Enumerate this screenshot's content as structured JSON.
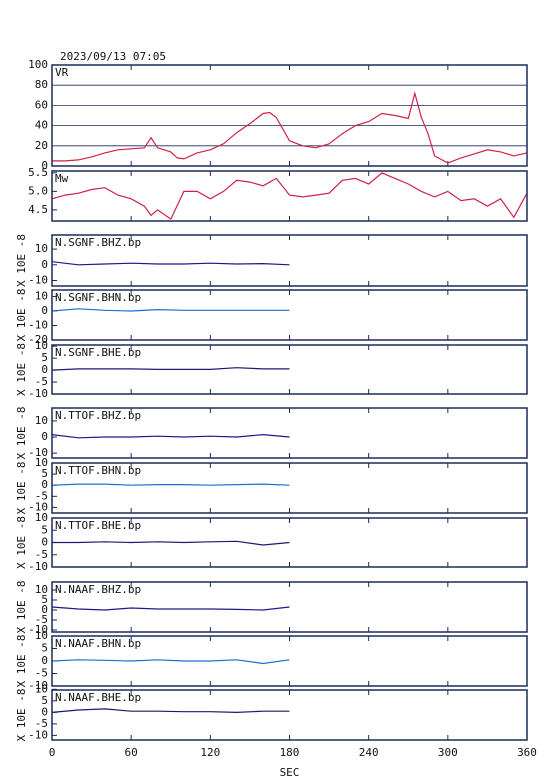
{
  "chart_data": [
    {
      "type": "line",
      "title": "2023/09/13 07:05",
      "label": "VR",
      "grid": true,
      "xlim": [
        0,
        360
      ],
      "xticks": [
        0,
        60,
        120,
        180,
        240,
        300,
        360
      ],
      "ylim": [
        0,
        100
      ],
      "yticks": [
        0,
        20,
        40,
        60,
        80,
        100
      ],
      "x": [
        0,
        10,
        20,
        30,
        40,
        50,
        60,
        70,
        75,
        80,
        90,
        95,
        100,
        110,
        120,
        130,
        140,
        150,
        160,
        165,
        170,
        180,
        190,
        200,
        210,
        220,
        230,
        240,
        250,
        260,
        270,
        275,
        280,
        285,
        290,
        300,
        310,
        320,
        330,
        340,
        350,
        360
      ],
      "series": [
        {
          "color": "#d0204a",
          "values": [
            5,
            5,
            6,
            9,
            13,
            16,
            17,
            18,
            28,
            18,
            14,
            8,
            7,
            13,
            16,
            22,
            33,
            42,
            52,
            53,
            48,
            25,
            20,
            18,
            22,
            32,
            40,
            44,
            52,
            50,
            47,
            72,
            48,
            32,
            10,
            3,
            8,
            12,
            16,
            14,
            10,
            13
          ]
        }
      ]
    },
    {
      "type": "line",
      "label": "Mw",
      "grid": false,
      "xlim": [
        0,
        360
      ],
      "xticks": [
        0,
        60,
        120,
        180,
        240,
        300,
        360
      ],
      "ylim": [
        4.2,
        5.55
      ],
      "yticks": [
        4.5,
        {
          "value": 5,
          "label": "5.0"
        },
        5.5
      ],
      "x": [
        0,
        10,
        20,
        30,
        40,
        50,
        60,
        70,
        75,
        80,
        90,
        100,
        110,
        120,
        130,
        140,
        150,
        160,
        170,
        180,
        190,
        200,
        210,
        220,
        230,
        240,
        250,
        260,
        270,
        280,
        290,
        300,
        310,
        320,
        330,
        340,
        350,
        360
      ],
      "series": [
        {
          "color": "#d0204a",
          "values": [
            4.8,
            4.9,
            4.95,
            5.05,
            5.1,
            4.9,
            4.8,
            4.6,
            4.35,
            4.5,
            4.25,
            5.0,
            5.0,
            4.8,
            5.0,
            5.3,
            5.25,
            5.15,
            5.35,
            4.9,
            4.85,
            4.9,
            4.95,
            5.3,
            5.35,
            5.2,
            5.5,
            5.35,
            5.2,
            5.0,
            4.85,
            5.0,
            4.75,
            4.8,
            4.6,
            4.8,
            4.3,
            4.95
          ]
        }
      ]
    },
    {
      "type": "line",
      "label": "N.SGNF.BHZ.bp",
      "y_label": "X 10E -8",
      "xlim": [
        0,
        360
      ],
      "xticks": [
        0,
        60,
        120,
        180,
        240,
        300,
        360
      ],
      "ylim": [
        -13.5,
        19
      ],
      "yticks": [
        10,
        0,
        -10
      ],
      "x": [
        0,
        20,
        40,
        60,
        80,
        100,
        120,
        140,
        160,
        180
      ],
      "series": [
        {
          "color": "#1a1a8c",
          "values": [
            2,
            0,
            0.5,
            1,
            0.5,
            0.5,
            1,
            0.5,
            0.8,
            0
          ]
        }
      ]
    },
    {
      "type": "line",
      "label": "N.SGNF.BHN.bp",
      "y_label": "X 10E -8",
      "xlim": [
        0,
        360
      ],
      "xticks": [
        0,
        60,
        120,
        180,
        240,
        300,
        360
      ],
      "ylim": [
        -20,
        14.5
      ],
      "yticks": [
        10,
        0,
        -10,
        -20
      ],
      "x": [
        0,
        20,
        40,
        60,
        80,
        100,
        120,
        140,
        160,
        180
      ],
      "series": [
        {
          "color": "#1a70d0",
          "values": [
            0,
            1.5,
            0.5,
            0,
            1,
            0.5,
            0.5,
            0.5,
            0.5,
            0.5
          ]
        }
      ]
    },
    {
      "type": "line",
      "label": "N.SGNF.BHE.bp",
      "y_label": "X 10E -8",
      "xlim": [
        0,
        360
      ],
      "xticks": [
        0,
        60,
        120,
        180,
        240,
        300,
        360
      ],
      "ylim": [
        -10,
        10.5
      ],
      "yticks": [
        10,
        5,
        0,
        -5,
        -10
      ],
      "x": [
        0,
        20,
        40,
        60,
        80,
        100,
        120,
        140,
        160,
        180
      ],
      "series": [
        {
          "color": "#1a1a6e",
          "values": [
            0,
            0.5,
            0.5,
            0.5,
            0.3,
            0.3,
            0.3,
            1,
            0.5,
            0.5
          ]
        }
      ]
    },
    {
      "type": "line",
      "label": "N.TTOF.BHZ.bp",
      "y_label": "X 10E -8",
      "xlim": [
        0,
        360
      ],
      "xticks": [
        0,
        60,
        120,
        180,
        240,
        300,
        360
      ],
      "ylim": [
        -13,
        18
      ],
      "yticks": [
        10,
        0,
        -10
      ],
      "x": [
        0,
        20,
        40,
        60,
        80,
        100,
        120,
        140,
        160,
        180
      ],
      "series": [
        {
          "color": "#1a1a8c",
          "values": [
            1.5,
            -0.5,
            0,
            0,
            0.5,
            0,
            0.5,
            0,
            1.5,
            0
          ]
        }
      ]
    },
    {
      "type": "line",
      "label": "N.TTOF.BHN.bp",
      "y_label": "X 10E -8",
      "xlim": [
        0,
        360
      ],
      "xticks": [
        0,
        60,
        120,
        180,
        240,
        300,
        360
      ],
      "ylim": [
        -12.5,
        10
      ],
      "yticks": [
        10,
        5,
        0,
        -5,
        -10
      ],
      "x": [
        0,
        20,
        40,
        60,
        80,
        100,
        120,
        140,
        160,
        180
      ],
      "series": [
        {
          "color": "#1a70d0",
          "values": [
            0,
            0.5,
            0.5,
            0,
            0.3,
            0.3,
            0,
            0.3,
            0.5,
            0
          ]
        }
      ]
    },
    {
      "type": "line",
      "label": "N.TTOF.BHE.bp",
      "y_label": "X 10E -8",
      "xlim": [
        0,
        360
      ],
      "xticks": [
        0,
        60,
        120,
        180,
        240,
        300,
        360
      ],
      "ylim": [
        -10,
        10
      ],
      "yticks": [
        10,
        5,
        0,
        -5,
        -10
      ],
      "x": [
        0,
        20,
        40,
        60,
        80,
        100,
        120,
        140,
        160,
        180
      ],
      "series": [
        {
          "color": "#1a1a6e",
          "values": [
            0,
            0,
            0.3,
            0,
            0.3,
            0,
            0.3,
            0.5,
            -1,
            0
          ]
        }
      ]
    },
    {
      "type": "line",
      "label": "N.NAAF.BHZ.bp",
      "y_label": "X 10E -8",
      "xlim": [
        0,
        360
      ],
      "xticks": [
        0,
        60,
        120,
        180,
        240,
        300,
        360
      ],
      "ylim": [
        -11,
        14
      ],
      "yticks": [
        10,
        5,
        0,
        -5,
        -10
      ],
      "x": [
        0,
        20,
        40,
        60,
        80,
        100,
        120,
        140,
        160,
        180
      ],
      "series": [
        {
          "color": "#1a1a8c",
          "values": [
            1.5,
            0.5,
            0,
            1,
            0.5,
            0.5,
            0.5,
            0.3,
            0,
            1.5
          ]
        }
      ]
    },
    {
      "type": "line",
      "label": "N.NAAF.BHN.bp",
      "y_label": "X 10E -8",
      "xlim": [
        0,
        360
      ],
      "xticks": [
        0,
        60,
        120,
        180,
        240,
        300,
        360
      ],
      "ylim": [
        -10,
        10
      ],
      "yticks": [
        10,
        5,
        0,
        -5,
        -10
      ],
      "x": [
        0,
        20,
        40,
        60,
        80,
        100,
        120,
        140,
        160,
        180
      ],
      "series": [
        {
          "color": "#1a70d0",
          "values": [
            0,
            0.5,
            0.3,
            0,
            0.5,
            0,
            0,
            0.5,
            -1,
            0.5
          ]
        }
      ]
    },
    {
      "type": "line",
      "label": "N.NAAF.BHE.bp",
      "y_label": "X 10E -8",
      "x_label": "SEC",
      "xlim": [
        0,
        360
      ],
      "xticks": [
        0,
        60,
        120,
        180,
        240,
        300,
        360
      ],
      "ylim": [
        -12,
        9.7
      ],
      "yticks": [
        10,
        5,
        0,
        -5,
        -10
      ],
      "x": [
        0,
        20,
        40,
        60,
        80,
        100,
        120,
        140,
        160,
        180
      ],
      "series": [
        {
          "color": "#1a1a6e",
          "values": [
            0,
            1,
            1.5,
            0.5,
            0.5,
            0.3,
            0.3,
            0,
            0.5,
            0.5
          ]
        }
      ]
    }
  ]
}
